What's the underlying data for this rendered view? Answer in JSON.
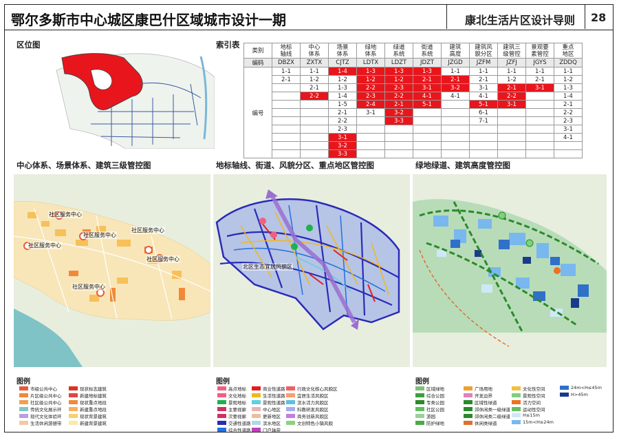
{
  "header": {
    "title": "鄂尔多斯市中心城区康巴什区域城市设计一期",
    "subtitle": "康北生活片区设计导则",
    "page_number": "28"
  },
  "sections": {
    "location": "区位图",
    "index": "索引表",
    "panel1": "中心体系、场景体系、建筑三级管控图",
    "panel2": "地标轴线、街道、风貌分区、重点地区管控图",
    "panel3": "绿地绿道、建筑高度管控图"
  },
  "index_table": {
    "category_label": "类别",
    "code_label": "编码",
    "number_label": "编号",
    "columns": [
      {
        "name": "地标\n轴线",
        "code": "DBZX"
      },
      {
        "name": "中心\n体系",
        "code": "ZXTX"
      },
      {
        "name": "场景\n体系",
        "code": "CJTZ"
      },
      {
        "name": "绿地\n体系",
        "code": "LDTX"
      },
      {
        "name": "绿道\n系统",
        "code": "LDZT"
      },
      {
        "name": "街道\n系统",
        "code": "JDZT"
      },
      {
        "name": "建筑\n高度",
        "code": "JZGD"
      },
      {
        "name": "建筑风\n貌分区",
        "code": "JZFM"
      },
      {
        "name": "建筑三\n级管控",
        "code": "JZFJ"
      },
      {
        "name": "景观要\n素管控",
        "code": "JGYS"
      },
      {
        "name": "重点\n地区",
        "code": "ZDDQ"
      }
    ],
    "rows": [
      [
        {
          "v": "1-1"
        },
        {
          "v": "1-1"
        },
        {
          "v": "1-4",
          "r": 1
        },
        {
          "v": "1-3",
          "r": 1
        },
        {
          "v": "1-3",
          "r": 1
        },
        {
          "v": "1-3",
          "r": 1
        },
        {
          "v": "1-1"
        },
        {
          "v": "1-1"
        },
        {
          "v": "1-1"
        },
        {
          "v": "1-1"
        },
        {
          "v": "1-1"
        }
      ],
      [
        {
          "v": "2-1"
        },
        {
          "v": "1-2"
        },
        {
          "v": "1-2"
        },
        {
          "v": "1-2",
          "r": 1
        },
        {
          "v": "1-2",
          "r": 1
        },
        {
          "v": "2-1",
          "r": 1
        },
        {
          "v": "2-1",
          "r": 1
        },
        {
          "v": "2-1"
        },
        {
          "v": "1-2"
        },
        {
          "v": "2-1"
        },
        {
          "v": "1-2"
        }
      ],
      [
        {
          "v": ""
        },
        {
          "v": "2-1"
        },
        {
          "v": "1-3"
        },
        {
          "v": "2-2",
          "r": 1
        },
        {
          "v": "2-3",
          "r": 1
        },
        {
          "v": "3-1",
          "r": 1
        },
        {
          "v": "3-2",
          "r": 1
        },
        {
          "v": "3-1"
        },
        {
          "v": "2-1",
          "r": 1
        },
        {
          "v": "3-1",
          "r": 1
        },
        {
          "v": "1-3"
        }
      ],
      [
        {
          "v": ""
        },
        {
          "v": "2-2",
          "r": 1
        },
        {
          "v": "1-4"
        },
        {
          "v": "2-3",
          "r": 1
        },
        {
          "v": "2-2",
          "r": 1
        },
        {
          "v": "4-1",
          "r": 1
        },
        {
          "v": "4-1"
        },
        {
          "v": "4-1"
        },
        {
          "v": "2-2",
          "r": 1
        },
        {
          "v": ""
        },
        {
          "v": "1-4"
        }
      ],
      [
        {
          "v": ""
        },
        {
          "v": ""
        },
        {
          "v": "1-5"
        },
        {
          "v": "2-4",
          "r": 1
        },
        {
          "v": "2-1",
          "r": 1
        },
        {
          "v": "5-1",
          "r": 1
        },
        {
          "v": ""
        },
        {
          "v": "5-1",
          "r": 1
        },
        {
          "v": "3-1",
          "r": 1
        },
        {
          "v": ""
        },
        {
          "v": "2-1"
        }
      ],
      [
        {
          "v": ""
        },
        {
          "v": ""
        },
        {
          "v": "2-1"
        },
        {
          "v": "3-1"
        },
        {
          "v": "3-2",
          "r": 1
        },
        {
          "v": ""
        },
        {
          "v": ""
        },
        {
          "v": "6-1"
        },
        {
          "v": ""
        },
        {
          "v": ""
        },
        {
          "v": "2-2"
        }
      ],
      [
        {
          "v": ""
        },
        {
          "v": ""
        },
        {
          "v": "2-2"
        },
        {
          "v": ""
        },
        {
          "v": "3-3",
          "r": 1
        },
        {
          "v": ""
        },
        {
          "v": ""
        },
        {
          "v": "7-1"
        },
        {
          "v": ""
        },
        {
          "v": ""
        },
        {
          "v": "2-3"
        }
      ],
      [
        {
          "v": ""
        },
        {
          "v": ""
        },
        {
          "v": "2-3"
        },
        {
          "v": ""
        },
        {
          "v": ""
        },
        {
          "v": ""
        },
        {
          "v": ""
        },
        {
          "v": ""
        },
        {
          "v": ""
        },
        {
          "v": ""
        },
        {
          "v": "3-1"
        }
      ],
      [
        {
          "v": ""
        },
        {
          "v": ""
        },
        {
          "v": "3-1",
          "r": 1
        },
        {
          "v": ""
        },
        {
          "v": ""
        },
        {
          "v": ""
        },
        {
          "v": ""
        },
        {
          "v": ""
        },
        {
          "v": ""
        },
        {
          "v": ""
        },
        {
          "v": "4-1"
        }
      ],
      [
        {
          "v": ""
        },
        {
          "v": ""
        },
        {
          "v": "3-2",
          "r": 1
        },
        {
          "v": ""
        },
        {
          "v": ""
        },
        {
          "v": ""
        },
        {
          "v": ""
        },
        {
          "v": ""
        },
        {
          "v": ""
        },
        {
          "v": ""
        },
        {
          "v": ""
        }
      ],
      [
        {
          "v": ""
        },
        {
          "v": ""
        },
        {
          "v": "3-3",
          "r": 1
        },
        {
          "v": ""
        },
        {
          "v": ""
        },
        {
          "v": ""
        },
        {
          "v": ""
        },
        {
          "v": ""
        },
        {
          "v": ""
        },
        {
          "v": ""
        },
        {
          "v": ""
        }
      ]
    ]
  },
  "map1_labels": [
    "社区服务中心",
    "社区服务中心",
    "社区服务中心",
    "社区服务中心",
    "社区服务中心",
    "社区服务中心"
  ],
  "map2_label": "北区生态宜居风貌区",
  "legend_title": "图例",
  "legend1": [
    {
      "label": "市级公共中心",
      "color": "#e85a3a"
    },
    {
      "label": "片区级公共中心",
      "color": "#f08a3a"
    },
    {
      "label": "社区级公共中心",
      "color": "#f0a050"
    },
    {
      "label": "传统文化展示环",
      "color": "#7fc8c0"
    },
    {
      "label": "现代文化体验环",
      "color": "#b8a0e0"
    },
    {
      "label": "生活休闲游憩带",
      "color": "#f4c8a0"
    },
    {
      "label": "现状标志建筑",
      "color": "#e03020"
    },
    {
      "label": "新建地标建筑",
      "color": "#d84848"
    },
    {
      "label": "现状重点地段",
      "color": "#f08a3a"
    },
    {
      "label": "新建重点地段",
      "color": "#f5b060"
    },
    {
      "label": "现状背景建筑",
      "color": "#f7d070"
    },
    {
      "label": "新建背景建筑",
      "color": "#fbe8a8"
    }
  ],
  "legend2": [
    {
      "label": "高点地标",
      "color": "#f06080"
    },
    {
      "label": "文化地标",
      "color": "#f06080"
    },
    {
      "label": "景观地标",
      "color": "#20b050"
    },
    {
      "label": "主要视廊",
      "color": "#d03060"
    },
    {
      "label": "次要视廊",
      "color": "#d03060"
    },
    {
      "label": "交通性道路",
      "color": "#2a2ab8"
    },
    {
      "label": "综合性道路",
      "color": "#2070e0"
    },
    {
      "label": "商业性道路",
      "color": "#e02020"
    },
    {
      "label": "生活性道路",
      "color": "#f0b820"
    },
    {
      "label": "景观性道路",
      "color": "#60d0e0"
    },
    {
      "label": "中心地区",
      "color": "#f0b0b0"
    },
    {
      "label": "更新地区",
      "color": "#e8c0a0"
    },
    {
      "label": "滨水地区",
      "color": "#b0d8e8"
    },
    {
      "label": "门户轴带",
      "color": "#c040c0"
    },
    {
      "label": "行政文化核心风貌区",
      "color": "#f06060"
    },
    {
      "label": "宜居生活风貌区",
      "color": "#f8a070"
    },
    {
      "label": "滨水活力风貌区",
      "color": "#60c0e0"
    },
    {
      "label": "科教研发风貌区",
      "color": "#a0b0f0"
    },
    {
      "label": "商务创新风貌区",
      "color": "#c080e0"
    },
    {
      "label": "文创特色小镇风貌",
      "color": "#90d080"
    }
  ],
  "legend3": [
    {
      "label": "区域绿地",
      "color": "#7ec07e"
    },
    {
      "label": "综合公园",
      "color": "#3ca03c"
    },
    {
      "label": "专类公园",
      "color": "#2c8a2c"
    },
    {
      "label": "社区公园",
      "color": "#5cc05c"
    },
    {
      "label": "游园",
      "color": "#9ad09a"
    },
    {
      "label": "防护绿地",
      "color": "#4aaa4a"
    },
    {
      "label": "广场用地",
      "color": "#f0a030"
    },
    {
      "label": "开发边界",
      "color": "#e080c0"
    },
    {
      "label": "区域性绿道",
      "color": "#2a8a2a"
    },
    {
      "label": "郊休闲类一级绿道",
      "color": "#2a8a2a"
    },
    {
      "label": "郊休闲类二级绿道",
      "color": "#2a8a2a"
    },
    {
      "label": "休闲类绿道",
      "color": "#e07030"
    },
    {
      "label": "文化性空间",
      "color": "#f0c040"
    },
    {
      "label": "景观性空间",
      "color": "#7fd07f"
    },
    {
      "label": "活力空间",
      "color": "#f07020"
    },
    {
      "label": "运动性空间",
      "color": "#60c060"
    },
    {
      "label": "H≤15m",
      "color": "#cfe8f8"
    },
    {
      "label": "15m<H≤24m",
      "color": "#78b8ee"
    },
    {
      "label": "24m<H≤45m",
      "color": "#3070c8"
    },
    {
      "label": "H>45m",
      "color": "#1a3a8a"
    }
  ]
}
